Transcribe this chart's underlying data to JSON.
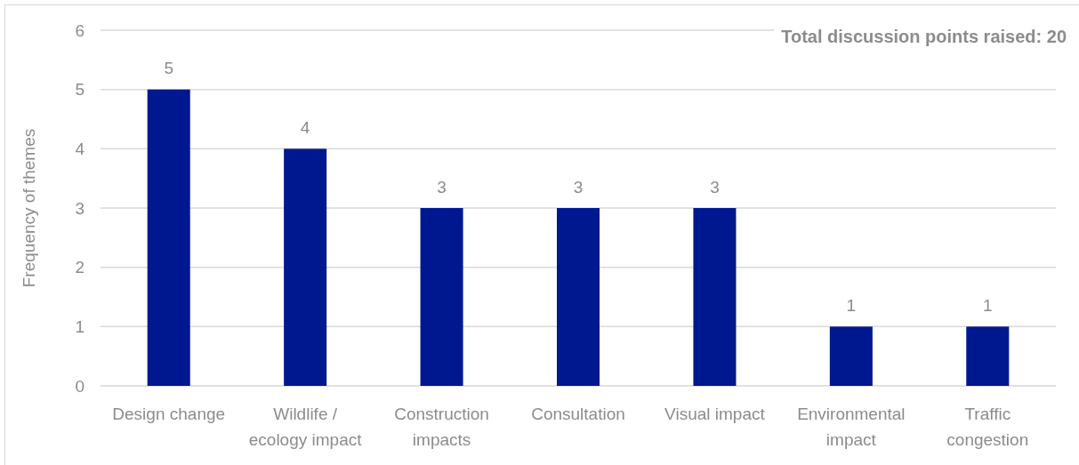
{
  "chart_data": {
    "type": "bar",
    "ylabel": "Frequency of themes",
    "annotations": [
      "Total discussion points raised: 20"
    ],
    "categories": [
      "Design change",
      "Wildlife / ecology impact",
      "Construction impacts",
      "Consultation",
      "Visual impact",
      "Environmental impact",
      "Traffic congestion"
    ],
    "values": [
      5,
      4,
      3,
      3,
      3,
      1,
      1
    ],
    "color": "#00188f",
    "ylim": [
      0,
      6
    ],
    "yticks": [
      0,
      1,
      2,
      3,
      4,
      5,
      6
    ],
    "grid": "y",
    "data_labels": true
  }
}
